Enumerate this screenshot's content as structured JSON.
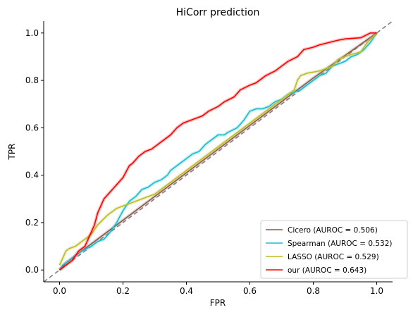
{
  "chart_data": {
    "type": "line",
    "title": "HiCorr prediction",
    "xlabel": "FPR",
    "ylabel": "TPR",
    "xlim": [
      -0.05,
      1.05
    ],
    "ylim": [
      -0.05,
      1.05
    ],
    "xticks": [
      "0.0",
      "0.2",
      "0.4",
      "0.6",
      "0.8",
      "1.0"
    ],
    "yticks": [
      "0.0",
      "0.2",
      "0.4",
      "0.6",
      "0.8",
      "1.0"
    ],
    "grid": false,
    "legend_position": "bottom-right",
    "diagonal": {
      "style": "dashed",
      "color": "#808080",
      "x": [
        -0.05,
        1.05
      ],
      "y": [
        -0.05,
        1.05
      ]
    },
    "series": [
      {
        "name": "Cicero (AUROC = 0.506)",
        "color": "#8c564b",
        "x": [
          0,
          0.02,
          0.05,
          0.1,
          0.2,
          0.3,
          0.4,
          0.5,
          0.6,
          0.7,
          0.8,
          0.9,
          1.0
        ],
        "y": [
          0,
          0.03,
          0.06,
          0.11,
          0.21,
          0.31,
          0.41,
          0.51,
          0.61,
          0.71,
          0.81,
          0.905,
          1.0
        ]
      },
      {
        "name": "Spearman (AUROC = 0.532)",
        "color": "#17becf",
        "x": [
          0,
          0.01,
          0.02,
          0.03,
          0.05,
          0.07,
          0.1,
          0.12,
          0.14,
          0.16,
          0.18,
          0.2,
          0.22,
          0.24,
          0.26,
          0.28,
          0.3,
          0.32,
          0.34,
          0.35,
          0.36,
          0.38,
          0.4,
          0.42,
          0.44,
          0.46,
          0.48,
          0.5,
          0.52,
          0.53,
          0.56,
          0.58,
          0.6,
          0.62,
          0.64,
          0.66,
          0.68,
          0.7,
          0.72,
          0.74,
          0.76,
          0.78,
          0.8,
          0.82,
          0.84,
          0.86,
          0.88,
          0.9,
          0.92,
          0.94,
          0.96,
          0.98,
          1.0
        ],
        "y": [
          0,
          0.02,
          0.03,
          0.04,
          0.06,
          0.08,
          0.1,
          0.12,
          0.13,
          0.16,
          0.2,
          0.25,
          0.29,
          0.31,
          0.34,
          0.35,
          0.37,
          0.38,
          0.4,
          0.42,
          0.43,
          0.45,
          0.47,
          0.49,
          0.5,
          0.53,
          0.55,
          0.57,
          0.57,
          0.58,
          0.6,
          0.63,
          0.67,
          0.68,
          0.68,
          0.69,
          0.71,
          0.72,
          0.74,
          0.75,
          0.76,
          0.78,
          0.8,
          0.82,
          0.83,
          0.86,
          0.87,
          0.88,
          0.9,
          0.91,
          0.93,
          0.96,
          1.0
        ]
      },
      {
        "name": "LASSO (AUROC = 0.529)",
        "color": "#bcbd22",
        "x": [
          0,
          0.01,
          0.02,
          0.03,
          0.05,
          0.07,
          0.1,
          0.12,
          0.15,
          0.18,
          0.22,
          0.26,
          0.3,
          0.4,
          0.5,
          0.6,
          0.7,
          0.72,
          0.74,
          0.75,
          0.76,
          0.78,
          0.8,
          0.82,
          0.84,
          0.86,
          0.88,
          0.9,
          0.92,
          0.95,
          0.97,
          1.0
        ],
        "y": [
          0.02,
          0.05,
          0.08,
          0.09,
          0.1,
          0.12,
          0.15,
          0.19,
          0.23,
          0.26,
          0.28,
          0.3,
          0.32,
          0.42,
          0.52,
          0.62,
          0.72,
          0.74,
          0.76,
          0.8,
          0.82,
          0.83,
          0.835,
          0.84,
          0.85,
          0.86,
          0.89,
          0.9,
          0.91,
          0.92,
          0.96,
          1.0
        ]
      },
      {
        "name": "our (AUROC = 0.643)",
        "color": "#ff0000",
        "x": [
          0,
          0.02,
          0.04,
          0.06,
          0.08,
          0.1,
          0.11,
          0.12,
          0.13,
          0.14,
          0.16,
          0.18,
          0.2,
          0.22,
          0.23,
          0.25,
          0.27,
          0.29,
          0.31,
          0.33,
          0.35,
          0.37,
          0.39,
          0.41,
          0.43,
          0.45,
          0.47,
          0.5,
          0.52,
          0.55,
          0.57,
          0.6,
          0.62,
          0.65,
          0.68,
          0.7,
          0.72,
          0.75,
          0.77,
          0.8,
          0.82,
          0.85,
          0.88,
          0.9,
          0.95,
          0.98,
          1.0
        ],
        "y": [
          0,
          0.02,
          0.04,
          0.08,
          0.1,
          0.16,
          0.19,
          0.24,
          0.27,
          0.3,
          0.33,
          0.36,
          0.39,
          0.44,
          0.45,
          0.48,
          0.5,
          0.51,
          0.53,
          0.55,
          0.57,
          0.6,
          0.62,
          0.63,
          0.64,
          0.65,
          0.67,
          0.69,
          0.71,
          0.73,
          0.76,
          0.78,
          0.79,
          0.82,
          0.84,
          0.86,
          0.88,
          0.9,
          0.93,
          0.94,
          0.95,
          0.96,
          0.97,
          0.975,
          0.98,
          1.0,
          1.0
        ]
      }
    ]
  }
}
